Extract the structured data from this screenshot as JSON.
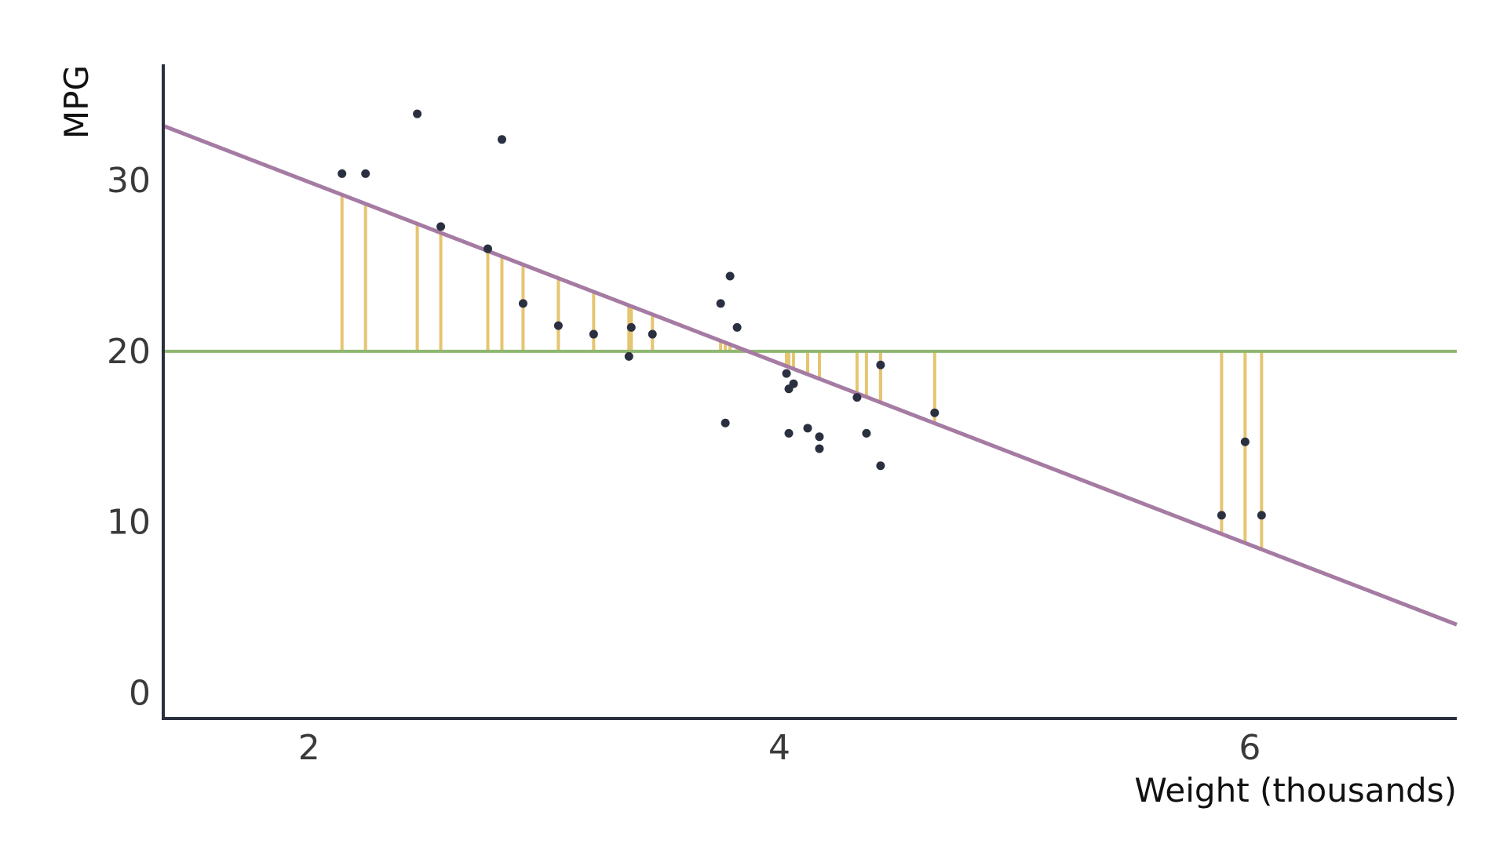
{
  "chart_data": {
    "type": "scatter",
    "title": "",
    "xlabel": "Weight (thousands)",
    "ylabel": "MPG",
    "xlim": [
      1.38,
      6.88
    ],
    "ylim": [
      -1.5,
      36.8
    ],
    "x_ticks": [
      2,
      4,
      6
    ],
    "x_tick_labels": [
      "2",
      "4",
      "6"
    ],
    "y_ticks": [
      0,
      10,
      20,
      30
    ],
    "y_tick_labels": [
      "0",
      "10",
      "20",
      "30"
    ],
    "grid": false,
    "legend": "none",
    "colors": {
      "points": "#2b3040",
      "regression_line": "#a57ba3",
      "mean_line": "#8fb86f",
      "residuals": "#e6c571",
      "axes": "#2b3040"
    },
    "mean_line": {
      "y": 20.0
    },
    "regression_line": {
      "x1": 1.38,
      "y1": 33.2,
      "x2": 6.88,
      "y2": 4.0
    },
    "series": [
      {
        "points": [
          {
            "x": 2.14,
            "y": 30.4
          },
          {
            "x": 2.24,
            "y": 30.4
          },
          {
            "x": 2.46,
            "y": 33.9
          },
          {
            "x": 2.56,
            "y": 27.3
          },
          {
            "x": 2.76,
            "y": 26.0
          },
          {
            "x": 2.82,
            "y": 32.4
          },
          {
            "x": 2.91,
            "y": 22.8
          },
          {
            "x": 3.06,
            "y": 21.5
          },
          {
            "x": 3.21,
            "y": 21.0
          },
          {
            "x": 3.36,
            "y": 19.7
          },
          {
            "x": 3.37,
            "y": 21.4
          },
          {
            "x": 3.46,
            "y": 21.0
          },
          {
            "x": 3.75,
            "y": 22.8
          },
          {
            "x": 3.77,
            "y": 15.8
          },
          {
            "x": 3.79,
            "y": 24.4
          },
          {
            "x": 3.82,
            "y": 21.4
          },
          {
            "x": 4.03,
            "y": 18.7
          },
          {
            "x": 4.04,
            "y": 15.2
          },
          {
            "x": 4.04,
            "y": 17.8
          },
          {
            "x": 4.06,
            "y": 18.1
          },
          {
            "x": 4.12,
            "y": 15.5
          },
          {
            "x": 4.17,
            "y": 15.0
          },
          {
            "x": 4.17,
            "y": 14.3
          },
          {
            "x": 4.33,
            "y": 17.3
          },
          {
            "x": 4.37,
            "y": 15.2
          },
          {
            "x": 4.43,
            "y": 13.3
          },
          {
            "x": 4.43,
            "y": 19.2
          },
          {
            "x": 4.66,
            "y": 16.4
          },
          {
            "x": 5.88,
            "y": 10.4
          },
          {
            "x": 5.98,
            "y": 14.7
          },
          {
            "x": 6.05,
            "y": 10.4
          }
        ]
      }
    ]
  }
}
